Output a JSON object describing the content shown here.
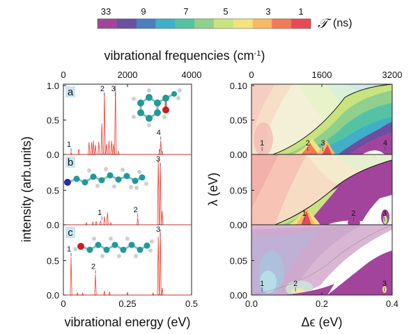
{
  "colorbar": {
    "tick_labels": [
      "33",
      "9",
      "7",
      "5",
      "3",
      "1"
    ],
    "symbol": "𝒯",
    "unit": "(ns)",
    "colors": [
      "#a3449c",
      "#6a4fa3",
      "#4a7fc0",
      "#3fb0c8",
      "#56c2a4",
      "#8fd08d",
      "#c8e37f",
      "#f3e27d",
      "#f8b867",
      "#f27a59",
      "#e84a55"
    ]
  },
  "left_panel": {
    "top_axis_label": "vibrational frequencies (cm",
    "top_axis_sup": "-1",
    "top_axis_close": ")",
    "top_ticks": [
      "0",
      "2000",
      "4000"
    ],
    "ylabel": "intensity (arb.units)",
    "xlabel": "vibrational energy (eV)",
    "x_ticks": [
      "0",
      "0.25",
      "0.5"
    ],
    "y_ticks_a": [
      "0.0",
      "0.5",
      "1.0"
    ],
    "y_ticks_b": [
      "0.0",
      "0.5"
    ],
    "y_ticks_c": [
      "0.0",
      "0.5"
    ]
  },
  "right_panel": {
    "top_ticks": [
      "0",
      "1600",
      "3200"
    ],
    "ylabel": "λ (eV)",
    "xlabel": "Δϵ (eV)",
    "x_ticks": [
      "0.0",
      "0.2",
      "0.4"
    ],
    "y_ticks_top": [
      "0.00",
      "0.05",
      "0.10"
    ],
    "y_ticks_mid": [
      "0.00",
      "0.05"
    ],
    "y_ticks_bot": [
      "0.00",
      "0.05"
    ]
  },
  "chart_data": [
    {
      "type": "line",
      "panel": "a",
      "x_unit": "vibrational energy (eV)",
      "xlim": [
        0,
        0.5
      ],
      "ylim": [
        0,
        1.0
      ],
      "peaks": [
        {
          "x": 0.03,
          "y": 0.03
        },
        {
          "x": 0.06,
          "y": 0.08
        },
        {
          "x": 0.1,
          "y": 0.18
        },
        {
          "x": 0.11,
          "y": 0.18
        },
        {
          "x": 0.117,
          "y": 0.2
        },
        {
          "x": 0.125,
          "y": 0.14
        },
        {
          "x": 0.138,
          "y": 0.18
        },
        {
          "x": 0.15,
          "y": 0.45
        },
        {
          "x": 0.16,
          "y": 0.9
        },
        {
          "x": 0.168,
          "y": 0.15
        },
        {
          "x": 0.178,
          "y": 0.2
        },
        {
          "x": 0.188,
          "y": 0.2
        },
        {
          "x": 0.195,
          "y": 0.15
        },
        {
          "x": 0.203,
          "y": 1.0
        },
        {
          "x": 0.215,
          "y": 0.05
        },
        {
          "x": 0.375,
          "y": 0.08
        },
        {
          "x": 0.38,
          "y": 0.2
        },
        {
          "x": 0.385,
          "y": 0.05
        }
      ],
      "markers": [
        {
          "label": "1",
          "x": 0.03
        },
        {
          "label": "2",
          "x": 0.16
        },
        {
          "label": "3",
          "x": 0.203
        },
        {
          "label": "4",
          "x": 0.38
        }
      ]
    },
    {
      "type": "line",
      "panel": "b",
      "x_unit": "vibrational energy (eV)",
      "xlim": [
        0,
        0.5
      ],
      "ylim": [
        0,
        1.0
      ],
      "peaks": [
        {
          "x": 0.09,
          "y": 0.03
        },
        {
          "x": 0.115,
          "y": 0.04
        },
        {
          "x": 0.128,
          "y": 0.05
        },
        {
          "x": 0.145,
          "y": 0.06
        },
        {
          "x": 0.16,
          "y": 0.12
        },
        {
          "x": 0.172,
          "y": 0.18
        },
        {
          "x": 0.185,
          "y": 0.03
        },
        {
          "x": 0.29,
          "y": 0.1
        },
        {
          "x": 0.37,
          "y": 0.95
        },
        {
          "x": 0.378,
          "y": 0.9
        },
        {
          "x": 0.385,
          "y": 0.2
        }
      ],
      "markers": [
        {
          "label": "1",
          "x": 0.15
        },
        {
          "label": "2",
          "x": 0.29
        },
        {
          "label": "3",
          "x": 0.378
        }
      ]
    },
    {
      "type": "line",
      "panel": "c",
      "x_unit": "vibrational energy (eV)",
      "xlim": [
        0,
        0.5
      ],
      "ylim": [
        0,
        1.0
      ],
      "peaks": [
        {
          "x": 0.03,
          "y": 0.55
        },
        {
          "x": 0.055,
          "y": 0.03
        },
        {
          "x": 0.075,
          "y": 0.03
        },
        {
          "x": 0.125,
          "y": 0.3
        },
        {
          "x": 0.16,
          "y": 0.06
        },
        {
          "x": 0.18,
          "y": 0.05
        },
        {
          "x": 0.35,
          "y": 0.03
        },
        {
          "x": 0.37,
          "y": 0.85
        },
        {
          "x": 0.378,
          "y": 0.95
        },
        {
          "x": 0.386,
          "y": 0.1
        }
      ],
      "markers": [
        {
          "label": "1",
          "x": 0.03
        },
        {
          "label": "2",
          "x": 0.125
        },
        {
          "label": "3",
          "x": 0.378
        }
      ]
    },
    {
      "type": "heatmap",
      "panel": "right",
      "xlim": [
        0,
        0.4
      ],
      "ylim": [
        0,
        0.1
      ],
      "markers_top": [
        {
          "label": "1",
          "x": 0.03
        },
        {
          "label": "2",
          "x": 0.16
        },
        {
          "label": "3",
          "x": 0.203
        },
        {
          "label": "4",
          "x": 0.38
        }
      ],
      "markers_mid": [
        {
          "label": "1",
          "x": 0.15
        },
        {
          "label": "2",
          "x": 0.29
        },
        {
          "label": "3",
          "x": 0.378
        }
      ],
      "markers_bot": [
        {
          "label": "1",
          "x": 0.03
        },
        {
          "label": "2",
          "x": 0.125
        },
        {
          "label": "3",
          "x": 0.378
        }
      ]
    }
  ]
}
